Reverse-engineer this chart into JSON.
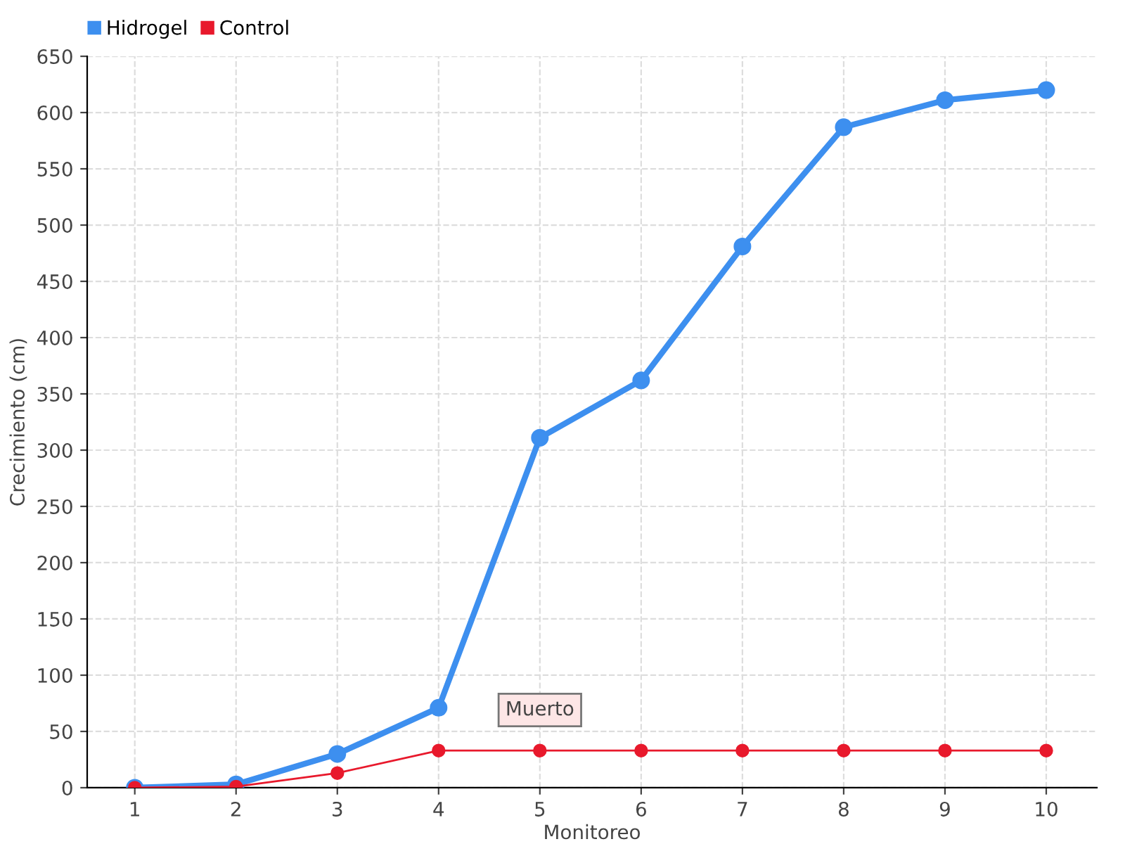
{
  "chart_data": {
    "type": "line",
    "xlabel": "Monitoreo",
    "ylabel": "Crecimiento (cm)",
    "categories": [
      "1",
      "2",
      "3",
      "4",
      "5",
      "6",
      "7",
      "8",
      "9",
      "10"
    ],
    "series": [
      {
        "name": "Hidrogel",
        "color": "#3d8fef",
        "values": [
          0,
          3,
          30,
          71,
          311,
          362,
          481,
          587,
          611,
          620
        ]
      },
      {
        "name": "Control",
        "color": "#e8192c",
        "values": [
          0,
          1,
          13,
          33,
          33,
          33,
          33,
          33,
          33,
          33
        ]
      }
    ],
    "ylim": [
      0,
      650
    ],
    "yticks": [
      0,
      50,
      100,
      150,
      200,
      250,
      300,
      350,
      400,
      450,
      500,
      550,
      600,
      650
    ],
    "grid": true,
    "legend": "top left",
    "marker": "circle",
    "line_style": "solid",
    "annotations": [
      {
        "text": "Muerto",
        "x": "5",
        "y": 33
      }
    ]
  }
}
